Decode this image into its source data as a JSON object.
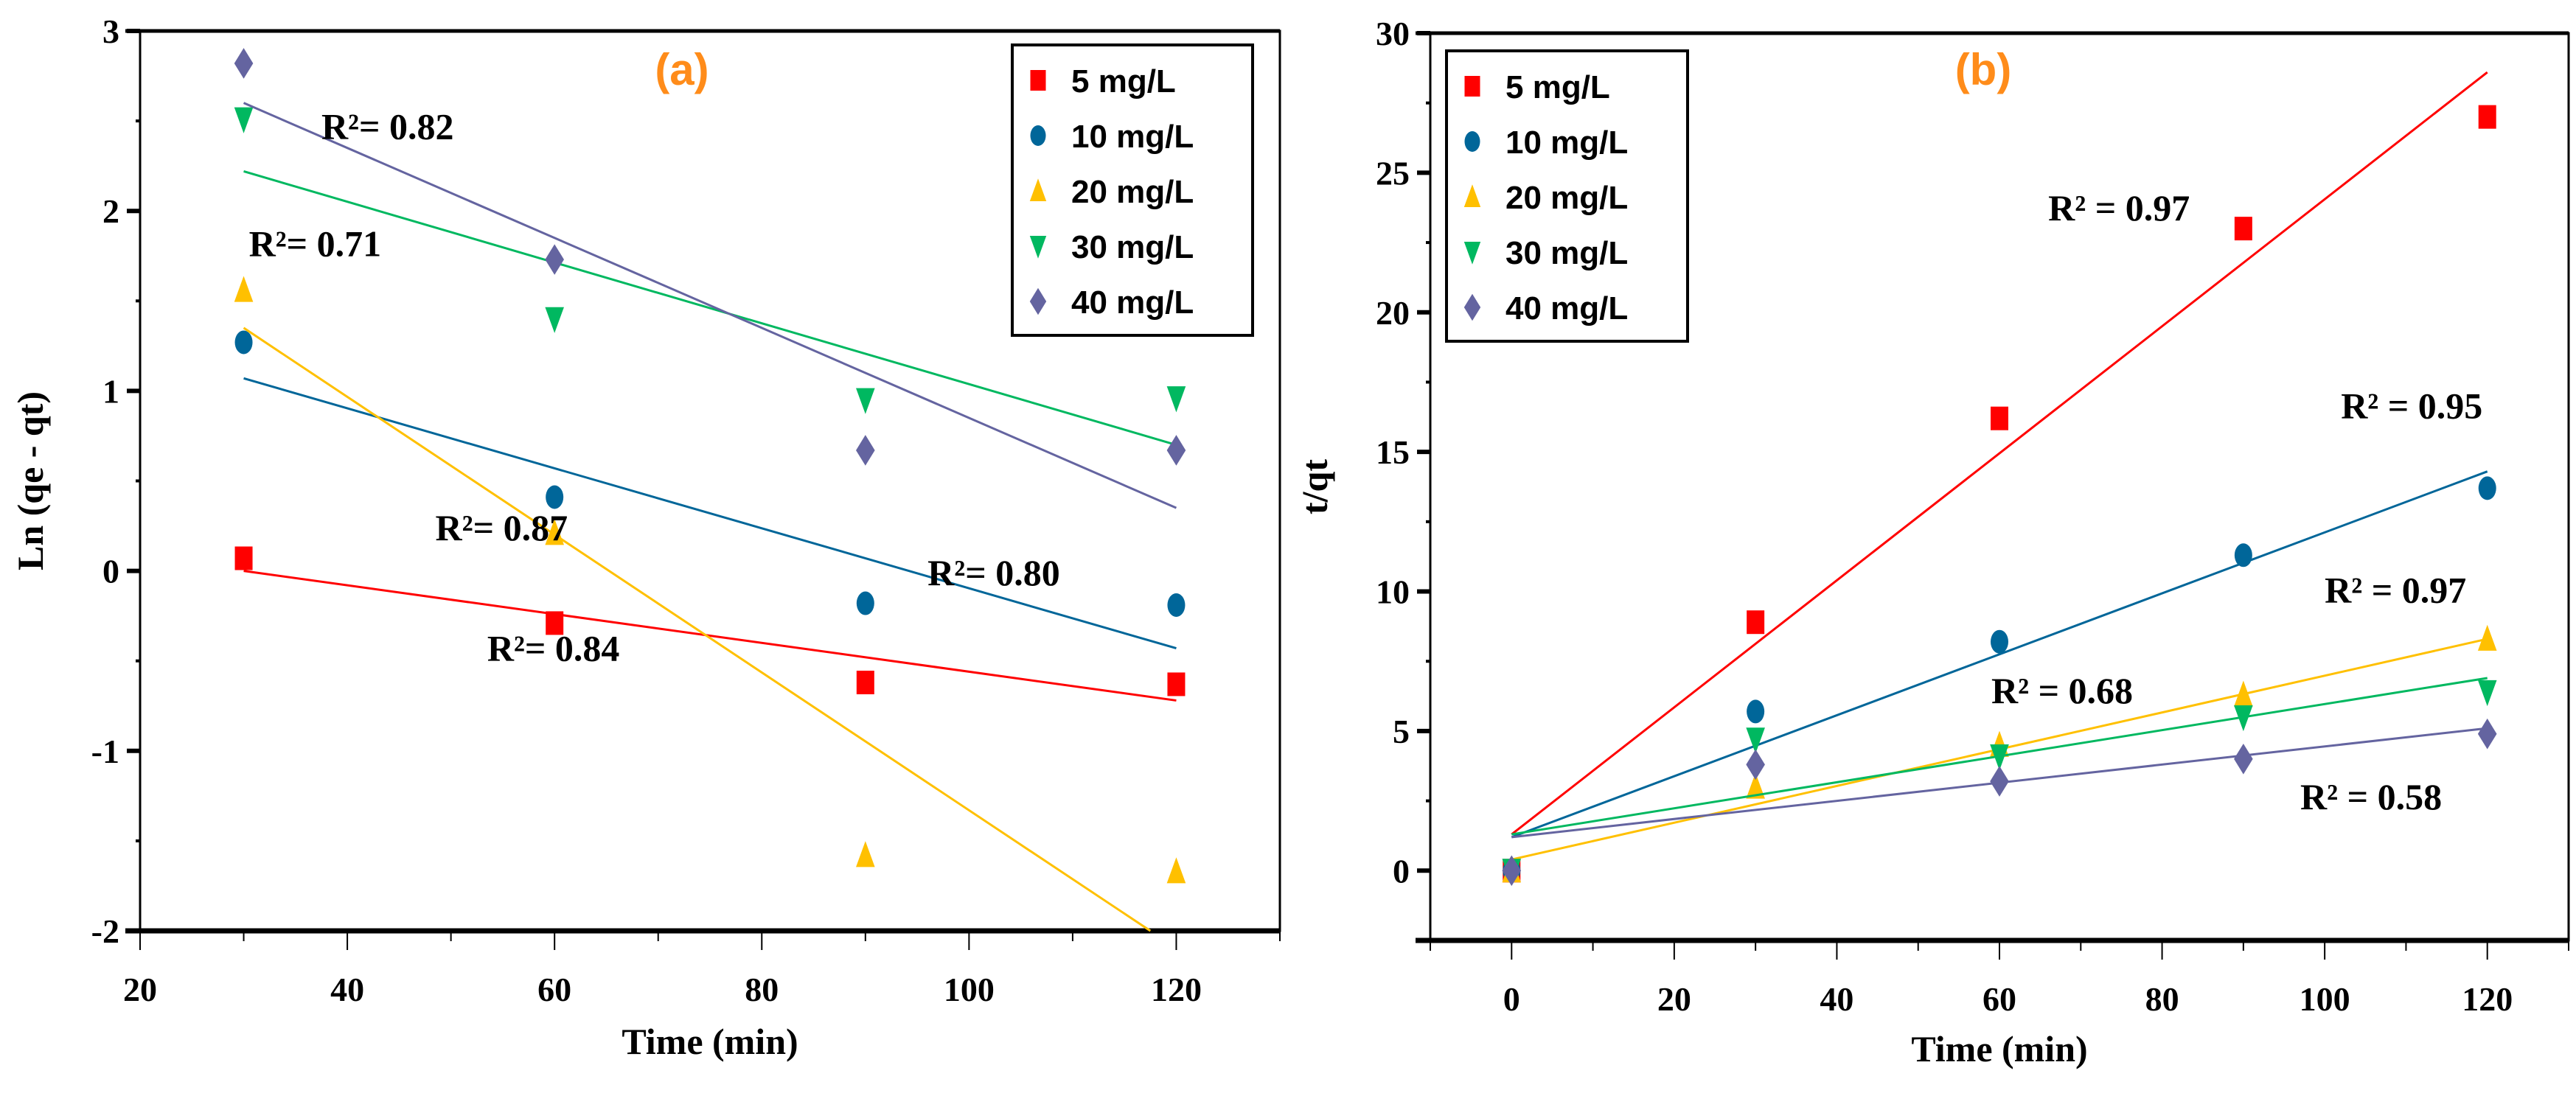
{
  "chart_data": [
    {
      "type": "scatter",
      "panel_label": "(a)",
      "xlabel": "Time (min)",
      "ylabel": "Ln (qe - qt)",
      "xlim": [
        20,
        130
      ],
      "ylim": [
        -2,
        3
      ],
      "xticks": [
        20,
        40,
        60,
        80,
        100,
        120
      ],
      "yticks": [
        -2,
        -1,
        0,
        1,
        2,
        3
      ],
      "legend_position": "top-right",
      "series": [
        {
          "name": "5 mg/L",
          "color": "#ff0000",
          "marker": "square",
          "x": [
            30,
            60,
            90,
            120
          ],
          "y": [
            0.07,
            -0.29,
            -0.62,
            -0.63
          ],
          "fit": [
            [
              30,
              0.0
            ],
            [
              120,
              -0.72
            ]
          ]
        },
        {
          "name": "10 mg/L",
          "color": "#006699",
          "marker": "circle",
          "x": [
            30,
            60,
            90,
            120
          ],
          "y": [
            1.27,
            0.41,
            -0.18,
            -0.19
          ],
          "fit": [
            [
              30,
              1.07
            ],
            [
              120,
              -0.43
            ]
          ]
        },
        {
          "name": "20 mg/L",
          "color": "#ffc000",
          "marker": "triangle-up",
          "x": [
            30,
            60,
            90,
            120
          ],
          "y": [
            1.56,
            0.21,
            -1.58,
            -1.67
          ],
          "fit": [
            [
              30,
              1.35
            ],
            [
              117.5,
              -2.0
            ]
          ]
        },
        {
          "name": "30 mg/L",
          "color": "#00b860",
          "marker": "triangle-down",
          "x": [
            30,
            60,
            90,
            120
          ],
          "y": [
            2.51,
            1.4,
            0.95,
            0.96
          ],
          "fit": [
            [
              30,
              2.22
            ],
            [
              120,
              0.7
            ]
          ]
        },
        {
          "name": "40 mg/L",
          "color": "#6464a0",
          "marker": "diamond",
          "x": [
            30,
            60,
            90,
            120
          ],
          "y": [
            2.82,
            1.73,
            0.67,
            0.67
          ],
          "fit": [
            [
              30,
              2.6
            ],
            [
              120,
              0.35
            ]
          ]
        }
      ],
      "annotations": [
        {
          "text": "R²= 0.82",
          "x": 37.5,
          "y": 2.4
        },
        {
          "text": "R²= 0.71",
          "x": 30.5,
          "y": 1.75
        },
        {
          "text": "R²= 0.87",
          "x": 48.5,
          "y": 0.17
        },
        {
          "text": "R²= 0.80",
          "x": 96,
          "y": -0.08
        },
        {
          "text": "R²= 0.84",
          "x": 53.5,
          "y": -0.5
        }
      ]
    },
    {
      "type": "scatter",
      "panel_label": "(b)",
      "xlabel": "Time (min)",
      "ylabel": "t/qt",
      "xlim": [
        -10,
        130
      ],
      "ylim": [
        -2.5,
        30
      ],
      "xticks": [
        0,
        20,
        40,
        60,
        80,
        100,
        120
      ],
      "yticks": [
        0,
        5,
        10,
        15,
        20,
        25,
        30
      ],
      "legend_position": "top-left",
      "series": [
        {
          "name": "5 mg/L",
          "color": "#ff0000",
          "marker": "square",
          "x": [
            0,
            30,
            60,
            90,
            120
          ],
          "y": [
            0,
            8.9,
            16.2,
            23.0,
            27.0
          ],
          "fit": [
            [
              0,
              1.3
            ],
            [
              120,
              28.6
            ]
          ]
        },
        {
          "name": "10 mg/L",
          "color": "#006699",
          "marker": "circle",
          "x": [
            0,
            30,
            60,
            90,
            120
          ],
          "y": [
            0,
            5.7,
            8.2,
            11.3,
            13.7
          ],
          "fit": [
            [
              0,
              1.2
            ],
            [
              120,
              14.3
            ]
          ]
        },
        {
          "name": "20 mg/L",
          "color": "#ffc000",
          "marker": "triangle-up",
          "x": [
            0,
            30,
            60,
            90,
            120
          ],
          "y": [
            0,
            3.0,
            4.5,
            6.3,
            8.3
          ],
          "fit": [
            [
              0,
              0.4
            ],
            [
              120,
              8.3
            ]
          ]
        },
        {
          "name": "30 mg/L",
          "color": "#00b860",
          "marker": "triangle-down",
          "x": [
            0,
            30,
            60,
            90,
            120
          ],
          "y": [
            0,
            4.7,
            4.1,
            5.5,
            6.4
          ],
          "fit": [
            [
              0,
              1.3
            ],
            [
              120,
              6.9
            ]
          ]
        },
        {
          "name": "40 mg/L",
          "color": "#6464a0",
          "marker": "diamond",
          "x": [
            0,
            30,
            60,
            90,
            120
          ],
          "y": [
            0,
            3.8,
            3.2,
            4.0,
            4.9
          ],
          "fit": [
            [
              0,
              1.2
            ],
            [
              120,
              5.1
            ]
          ]
        }
      ],
      "annotations": [
        {
          "text": "R² = 0.97",
          "x": 66,
          "y": 23.3
        },
        {
          "text": "R² = 0.95",
          "x": 102,
          "y": 16.2
        },
        {
          "text": "R² = 0.97",
          "x": 100,
          "y": 9.6
        },
        {
          "text": "R² = 0.68",
          "x": 59,
          "y": 6.0
        },
        {
          "text": "R² = 0.58",
          "x": 97,
          "y": 2.2
        }
      ]
    }
  ]
}
